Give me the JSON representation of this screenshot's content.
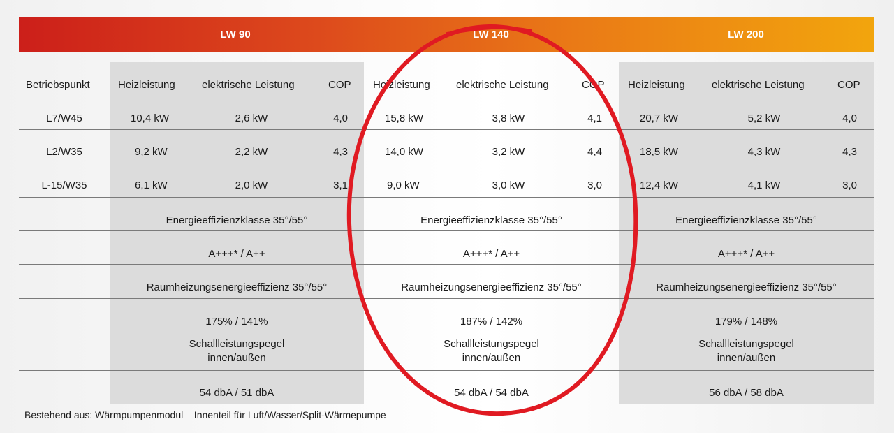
{
  "header": {
    "colors": [
      "#cc1f1a",
      "#e0561c",
      "#ee8a12",
      "#f2a50d"
    ],
    "models": [
      "LW 90",
      "LW 140",
      "LW 200"
    ]
  },
  "columns": {
    "betriebspunkt": "Betriebspunkt",
    "heizleistung": "Heizleistung",
    "elektrisch": "elektrische Leistung",
    "cop": "COP"
  },
  "rows": [
    {
      "point": "L7/W45",
      "lw90": [
        "10,4 kW",
        "2,6 kW",
        "4,0"
      ],
      "lw140": [
        "15,8 kW",
        "3,8 kW",
        "4,1"
      ],
      "lw200": [
        "20,7 kW",
        "5,2 kW",
        "4,0"
      ]
    },
    {
      "point": "L2/W35",
      "lw90": [
        "9,2 kW",
        "2,2 kW",
        "4,3"
      ],
      "lw140": [
        "14,0 kW",
        "3,2 kW",
        "4,4"
      ],
      "lw200": [
        "18,5 kW",
        "4,3 kW",
        "4,3"
      ]
    },
    {
      "point": "L-15/W35",
      "lw90": [
        "6,1 kW",
        "2,0 kW",
        "3,1"
      ],
      "lw140": [
        "9,0 kW",
        "3,0 kW",
        "3,0"
      ],
      "lw200": [
        "12,4 kW",
        "4,1 kW",
        "3,0"
      ]
    }
  ],
  "summary": {
    "energieklasse_label": "Energieeffizienzklasse 35°/55°",
    "energieklasse_value": [
      "A+++* / A++",
      "A+++* / A++",
      "A+++* / A++"
    ],
    "raumheizung_label": "Raumheizungsenergieeffizienz 35°/55°",
    "raumheizung_value": [
      "175% / 141%",
      "187% / 142%",
      "179% / 148%"
    ],
    "schall_label_1": "Schallleistungspegel",
    "schall_label_2": "innen/außen",
    "schall_value": [
      "54 dbA / 51 dbA",
      "54 dbA / 54 dbA",
      "56 dbA / 58 dbA"
    ]
  },
  "footer": "Bestehend aus: Wärmpumpenmodul – Innenteil für Luft/Wasser/Split-Wärmepumpe",
  "annotation_color": "#e01a22"
}
